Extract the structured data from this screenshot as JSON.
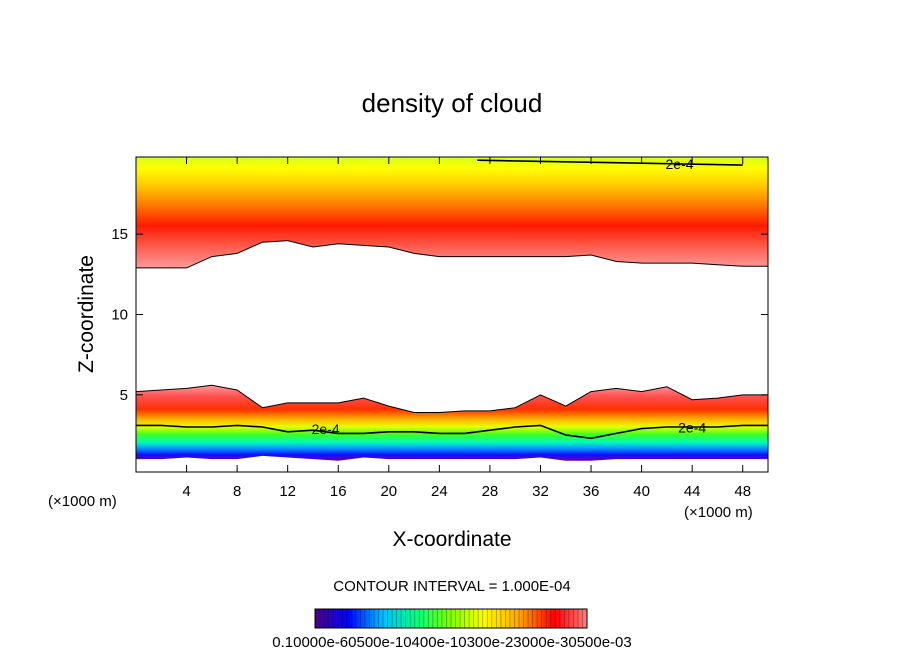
{
  "chart_data": {
    "type": "heatmap",
    "title": "density of cloud",
    "xlabel": "X-coordinate",
    "ylabel": "Z-coordinate",
    "x_unit": "(×1000 m)",
    "xlim": [
      0,
      50
    ],
    "ylim": [
      0.2,
      19.8
    ],
    "x_ticks": [
      4,
      8,
      12,
      16,
      20,
      24,
      28,
      32,
      36,
      40,
      44,
      48
    ],
    "y_ticks": [
      5,
      10,
      15
    ],
    "contour_interval_text": "CONTOUR INTERVAL = 1.000E-04",
    "contour_label": "2e-4",
    "colorbar_text": "0.10000e-60500e-10400e-10300e-23000e-30500e-03",
    "colorbar_colors": [
      "#4b0082",
      "#0000ff",
      "#00bfff",
      "#00ff7f",
      "#7fff00",
      "#ffff00",
      "#ffa500",
      "#ff0000",
      "#ff7f7f"
    ],
    "upper_layer": {
      "base_z": [
        12.9,
        12.9,
        12.9,
        13.6,
        13.8,
        14.5,
        14.6,
        14.2,
        14.4,
        14.3,
        14.2,
        13.8,
        13.6,
        13.6,
        13.6,
        13.6,
        13.6,
        13.6,
        13.7,
        13.3,
        13.2,
        13.2,
        13.2,
        13.1,
        13.0,
        13.0
      ],
      "core_z": [
        15.4,
        15.8,
        16.0,
        16.2,
        16.8,
        16.6,
        16.4,
        16.2,
        16.0,
        15.8,
        15.8,
        15.6,
        15.6,
        15.6,
        15.6,
        15.5,
        15.5,
        15.5,
        15.5,
        15.4,
        15.4,
        15.4,
        15.3,
        15.3,
        15.3,
        15.2
      ],
      "top_z": [
        19.8,
        19.8,
        19.8,
        19.8,
        19.8,
        19.8,
        19.8,
        19.8,
        19.8,
        19.8,
        19.8,
        19.8,
        19.8,
        19.8,
        19.8,
        19.8,
        19.8,
        19.8,
        19.8,
        19.8,
        19.8,
        19.8,
        19.8,
        19.8,
        19.8,
        19.8
      ]
    },
    "lower_layer": {
      "top_z": [
        5.2,
        5.3,
        5.4,
        5.6,
        5.3,
        4.2,
        4.5,
        4.5,
        4.5,
        4.8,
        4.3,
        3.9,
        3.9,
        4.0,
        4.0,
        4.2,
        5.0,
        4.3,
        5.2,
        5.4,
        5.2,
        5.5,
        4.7,
        4.8,
        5.0,
        5.0
      ],
      "contour_2e4_z": [
        3.1,
        3.1,
        3.0,
        3.0,
        3.1,
        3.0,
        2.7,
        2.8,
        2.6,
        2.6,
        2.7,
        2.7,
        2.6,
        2.6,
        2.8,
        3.0,
        3.1,
        2.5,
        2.3,
        2.6,
        2.9,
        3.0,
        3.0,
        3.0,
        3.1,
        3.1
      ],
      "base_z": [
        1.0,
        1.0,
        1.1,
        1.0,
        1.0,
        1.2,
        1.1,
        1.0,
        0.9,
        1.1,
        1.0,
        1.0,
        1.0,
        1.0,
        1.0,
        1.0,
        1.1,
        0.9,
        0.9,
        1.0,
        1.0,
        1.0,
        1.0,
        1.0,
        1.0,
        1.0
      ]
    },
    "upper_contour_2e4": {
      "x_start": 27,
      "x_end": 48,
      "z": 19.6
    },
    "contour_label_positions": [
      [
        43,
        19.3
      ],
      [
        15,
        2.8
      ],
      [
        44,
        2.9
      ]
    ]
  }
}
